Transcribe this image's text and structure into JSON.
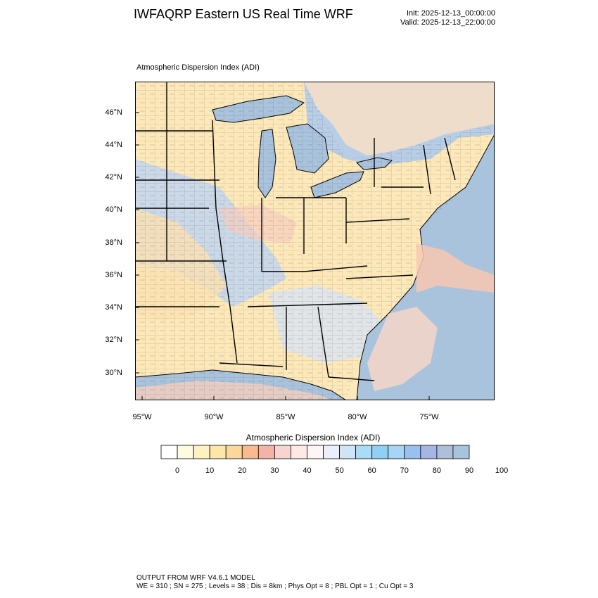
{
  "header": {
    "title": "IWFAQRP Eastern US Real Time WRF",
    "init": "Init: 2025-12-13_00:00:00",
    "valid": "Valid: 2025-12-13_22:00:00"
  },
  "map": {
    "title": "Atmospheric Dispersion Index   (ADI)",
    "lat_labels": [
      "46°N",
      "44°N",
      "42°N",
      "40°N",
      "38°N",
      "36°N",
      "34°N",
      "32°N",
      "30°N"
    ],
    "lon_labels": [
      "95°W",
      "90°W",
      "85°W",
      "80°W",
      "75°W"
    ],
    "colors": {
      "water": "#a9c3dc",
      "land_low": "#fdf3c6",
      "land_mid": "#f9d9a8",
      "land_high": "#b9cfe8",
      "ocean_warm": "#f8c8b0"
    }
  },
  "colorbar": {
    "title": "Atmospheric Dispersion Index  (ADI)",
    "tick_labels": [
      "0",
      "10",
      "20",
      "30",
      "40",
      "50",
      "60",
      "70",
      "80",
      "90",
      "100"
    ],
    "colors": [
      "#ffffff",
      "#fffbe1",
      "#fef3c0",
      "#fde7a6",
      "#fbd79c",
      "#f7bb8f",
      "#f4b3a8",
      "#f8d3cf",
      "#fde9e6",
      "#fdf6f5",
      "#e9f0fb",
      "#cfe4f6",
      "#aadcf6",
      "#8fd0f3",
      "#a7d5f5",
      "#9ac0ef",
      "#a5b6e4",
      "#aebfd9",
      "#a9c3dc"
    ]
  },
  "footer": {
    "line1": "OUTPUT FROM WRF V4.6.1 MODEL",
    "line2": "WE = 310 ; SN = 275 ; Levels = 38 ; Dis = 8km ; Phys Opt = 8 ; PBL Opt = 1 ; Cu Opt = 3"
  }
}
